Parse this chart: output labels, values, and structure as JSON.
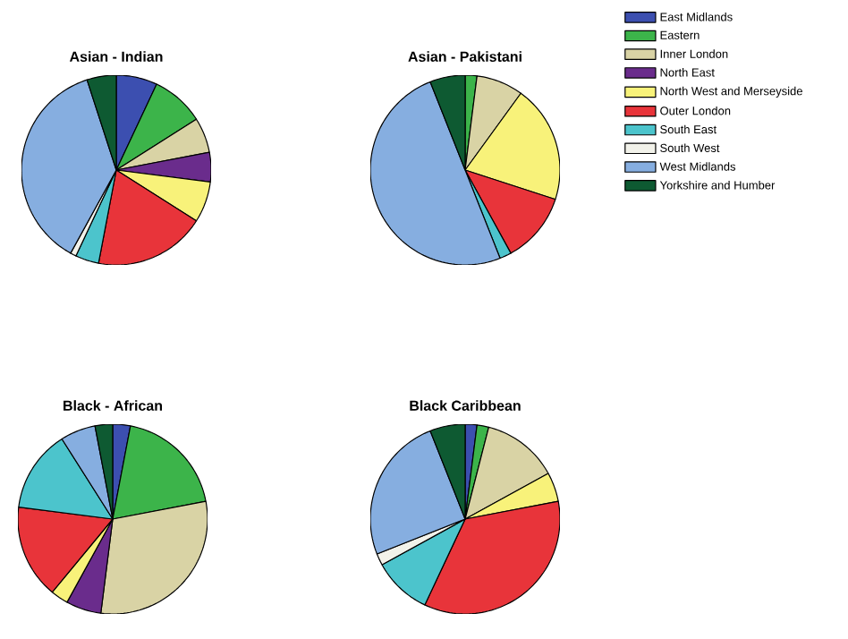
{
  "chart_data": [
    {
      "type": "pie",
      "title": "Asian - Indian",
      "categories": [
        "East Midlands",
        "Eastern",
        "Inner London",
        "North East",
        "North West and Merseyside",
        "Outer London",
        "South East",
        "South West",
        "West Midlands",
        "Yorkshire and Humber"
      ],
      "values": [
        7,
        9,
        6,
        5,
        7,
        19,
        4,
        1,
        37,
        5
      ],
      "colors": [
        "#3c4fb0",
        "#3cb44a",
        "#d9d3a5",
        "#6a2c8c",
        "#f8f27a",
        "#e8343a",
        "#4cc4cc",
        "#f2f2ea",
        "#86aee0",
        "#0e5a32"
      ],
      "legend": "top right"
    },
    {
      "type": "pie",
      "title": "Asian - Pakistani",
      "categories": [
        null,
        null,
        null,
        null,
        null,
        null,
        null,
        null,
        null,
        null
      ],
      "values": [
        0,
        2,
        8,
        0,
        20,
        12,
        2,
        0,
        50,
        6
      ],
      "colors": [
        "#3c4fb0",
        "#3cb44a",
        "#d9d3a5",
        "#6a2c8c",
        "#f8f27a",
        "#e8343a",
        "#4cc4cc",
        "#f2f2ea",
        "#86aee0",
        "#0e5a32"
      ]
    },
    {
      "type": "pie",
      "title": "Black - African",
      "categories": [
        null,
        null,
        null,
        null,
        null,
        null,
        null,
        null,
        null,
        null
      ],
      "values": [
        3,
        19,
        30,
        6,
        3,
        16,
        14,
        0,
        6,
        3
      ],
      "colors": [
        "#3c4fb0",
        "#3cb44a",
        "#d9d3a5",
        "#6a2c8c",
        "#f8f27a",
        "#e8343a",
        "#4cc4cc",
        "#f2f2ea",
        "#86aee0",
        "#0e5a32"
      ]
    },
    {
      "type": "pie",
      "title": "Black Caribbean",
      "categories": [
        null,
        null,
        null,
        null,
        null,
        null,
        null,
        null,
        null,
        null
      ],
      "values": [
        2,
        2,
        13,
        0,
        5,
        35,
        10,
        2,
        25,
        6
      ],
      "colors": [
        "#3c4fb0",
        "#3cb44a",
        "#d9d3a5",
        "#6a2c8c",
        "#f8f27a",
        "#e8343a",
        "#4cc4cc",
        "#f2f2ea",
        "#86aee0",
        "#0e5a32"
      ]
    }
  ]
}
